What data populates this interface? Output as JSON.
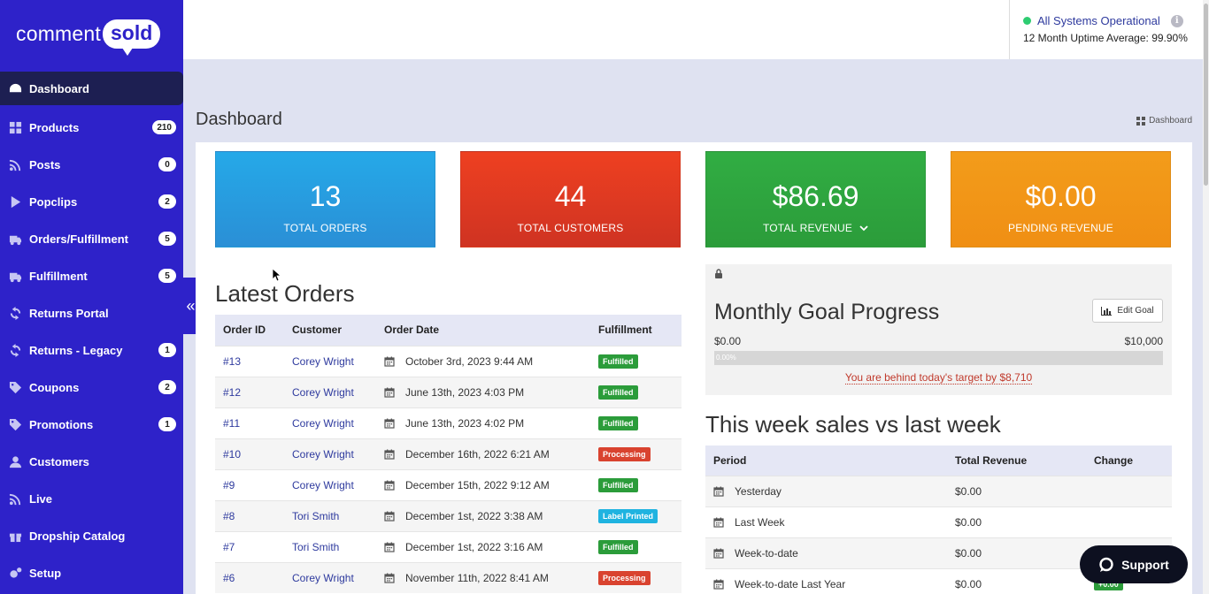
{
  "logo": {
    "word": "comment",
    "bubble": "sold"
  },
  "sidebar": {
    "items": [
      {
        "label": "Dashboard",
        "icon": "dashboard-icon",
        "badge": null,
        "active": true
      },
      {
        "label": "Products",
        "icon": "grid-icon",
        "badge": "210"
      },
      {
        "label": "Posts",
        "icon": "rss-icon",
        "badge": "0"
      },
      {
        "label": "Popclips",
        "icon": "play-icon",
        "badge": "2"
      },
      {
        "label": "Orders/Fulfillment",
        "icon": "truck-icon",
        "badge": "5"
      },
      {
        "label": "Fulfillment",
        "icon": "truck-icon",
        "badge": "5"
      },
      {
        "label": "Returns Portal",
        "icon": "refresh-icon",
        "badge": null
      },
      {
        "label": "Returns - Legacy",
        "icon": "refresh-icon",
        "badge": "1"
      },
      {
        "label": "Coupons",
        "icon": "tag-icon",
        "badge": "2"
      },
      {
        "label": "Promotions",
        "icon": "tag-icon",
        "badge": "1"
      },
      {
        "label": "Customers",
        "icon": "user-icon",
        "badge": null
      },
      {
        "label": "Live",
        "icon": "rss-icon",
        "badge": null
      },
      {
        "label": "Dropship Catalog",
        "icon": "gift-icon",
        "badge": null
      },
      {
        "label": "Setup",
        "icon": "gears-icon",
        "badge": null
      }
    ],
    "collapse_glyph": "«"
  },
  "status": {
    "text": "All Systems Operational",
    "uptime": "12 Month Uptime Average: 99.90%",
    "info_glyph": "i"
  },
  "page": {
    "title": "Dashboard",
    "breadcrumb": "Dashboard"
  },
  "stats": {
    "orders": {
      "value": "13",
      "label": "TOTAL ORDERS"
    },
    "customers": {
      "value": "44",
      "label": "TOTAL CUSTOMERS"
    },
    "revenue": {
      "value": "$86.69",
      "label": "TOTAL REVENUE"
    },
    "pending": {
      "value": "$0.00",
      "label": "PENDING REVENUE"
    }
  },
  "orders": {
    "title": "Latest Orders",
    "headers": [
      "Order ID",
      "Customer",
      "Order Date",
      "Fulfillment"
    ],
    "rows": [
      {
        "id": "#13",
        "customer": "Corey Wright",
        "date": "October 3rd, 2023 9:44 AM",
        "status": "Fulfilled"
      },
      {
        "id": "#12",
        "customer": "Corey Wright",
        "date": "June 13th, 2023 4:03 PM",
        "status": "Fulfilled"
      },
      {
        "id": "#11",
        "customer": "Corey Wright",
        "date": "June 13th, 2023 4:02 PM",
        "status": "Fulfilled"
      },
      {
        "id": "#10",
        "customer": "Corey Wright",
        "date": "December 16th, 2022 6:21 AM",
        "status": "Processing"
      },
      {
        "id": "#9",
        "customer": "Corey Wright",
        "date": "December 15th, 2022 9:12 AM",
        "status": "Fulfilled"
      },
      {
        "id": "#8",
        "customer": "Tori Smith",
        "date": "December 1st, 2022 3:38 AM",
        "status": "Label Printed"
      },
      {
        "id": "#7",
        "customer": "Tori Smith",
        "date": "December 1st, 2022 3:16 AM",
        "status": "Fulfilled"
      },
      {
        "id": "#6",
        "customer": "Corey Wright",
        "date": "November 11th, 2022 8:41 AM",
        "status": "Processing"
      }
    ],
    "status_colors": {
      "Fulfilled": "#2b9c3a",
      "Processing": "#d9432f",
      "Label Printed": "#1fb3e0"
    }
  },
  "goal": {
    "title": "Monthly Goal Progress",
    "edit_label": "Edit Goal",
    "min": "$0.00",
    "max": "$10,000",
    "progress_text": "0.00%",
    "progress_fraction": 0.0,
    "behind_text": "You are behind today's target by $8,710"
  },
  "week": {
    "title": "This week sales vs last week",
    "headers": [
      "Period",
      "Total Revenue",
      "Change"
    ],
    "rows": [
      {
        "period": "Yesterday",
        "revenue": "$0.00",
        "change": ""
      },
      {
        "period": "Last Week",
        "revenue": "$0.00",
        "change": ""
      },
      {
        "period": "Week-to-date",
        "revenue": "$0.00",
        "change": ""
      },
      {
        "period": "Week-to-date Last Year",
        "revenue": "$0.00",
        "change": "+0.00"
      }
    ]
  },
  "support": {
    "label": "Support"
  },
  "colors": {
    "sidebar": "#2e22c9",
    "active": "#1d1f52",
    "accent_link": "#2e3a9e"
  }
}
